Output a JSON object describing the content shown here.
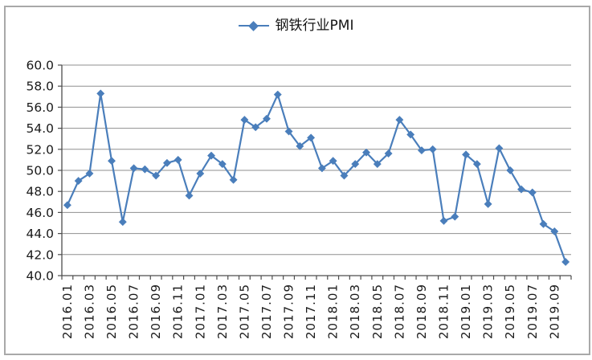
{
  "window": {
    "background": "#ffffff",
    "border_color": "#a9a9a9"
  },
  "chart_data": {
    "type": "line",
    "title": "",
    "legend_position": "top-center",
    "grid": true,
    "ylim": [
      40,
      60
    ],
    "y_tick_step": 2,
    "y_tick_labels": [
      "60.0",
      "58.0",
      "56.0",
      "54.0",
      "52.0",
      "50.0",
      "48.0",
      "46.0",
      "44.0",
      "42.0",
      "40.0"
    ],
    "x_label_every": 2,
    "categories": [
      "2016.01",
      "2016.02",
      "2016.03",
      "2016.04",
      "2016.05",
      "2016.06",
      "2016.07",
      "2016.08",
      "2016.09",
      "2016.10",
      "2016.11",
      "2016.12",
      "2017.01",
      "2017.02",
      "2017.03",
      "2017.04",
      "2017.05",
      "2017.06",
      "2017.07",
      "2017.08",
      "2017.09",
      "2017.10",
      "2017.11",
      "2017.12",
      "2018.01",
      "2018.02",
      "2018.03",
      "2018.04",
      "2018.05",
      "2018.06",
      "2018.07",
      "2018.08",
      "2018.09",
      "2018.10",
      "2018.11",
      "2018.12",
      "2019.01",
      "2019.02",
      "2019.03",
      "2019.04",
      "2019.05",
      "2019.06",
      "2019.07",
      "2019.08",
      "2019.09",
      "2019.10"
    ],
    "series": [
      {
        "name": "钢铁行业PMI",
        "color": "#4a7ebb",
        "marker": "diamond",
        "values": [
          46.7,
          49.0,
          49.7,
          57.3,
          50.9,
          45.1,
          50.2,
          50.1,
          49.5,
          50.7,
          51.0,
          47.6,
          49.7,
          51.4,
          50.6,
          49.1,
          54.8,
          54.1,
          54.9,
          57.2,
          53.7,
          52.3,
          53.1,
          50.2,
          50.9,
          49.5,
          50.6,
          51.7,
          50.6,
          51.6,
          54.8,
          53.4,
          51.9,
          52.0,
          45.2,
          45.6,
          51.5,
          50.6,
          46.8,
          52.1,
          50.0,
          48.2,
          47.9,
          44.9,
          44.2,
          41.3
        ]
      }
    ],
    "colors": {
      "gridline": "#8f8f8f",
      "axis": "#4d4d4d",
      "tick_text": "#1a1a1a"
    }
  }
}
